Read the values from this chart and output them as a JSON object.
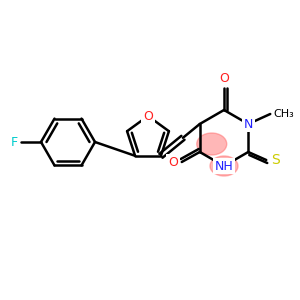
{
  "bg_color": "#ffffff",
  "bond_color": "#000000",
  "atom_colors": {
    "O": "#ff2020",
    "N": "#2020ff",
    "S": "#cccc00",
    "F": "#00cccc",
    "C": "#000000"
  },
  "highlight_color": "#ff6060",
  "highlight_alpha": 0.45,
  "figsize": [
    3.0,
    3.0
  ],
  "dpi": 100
}
